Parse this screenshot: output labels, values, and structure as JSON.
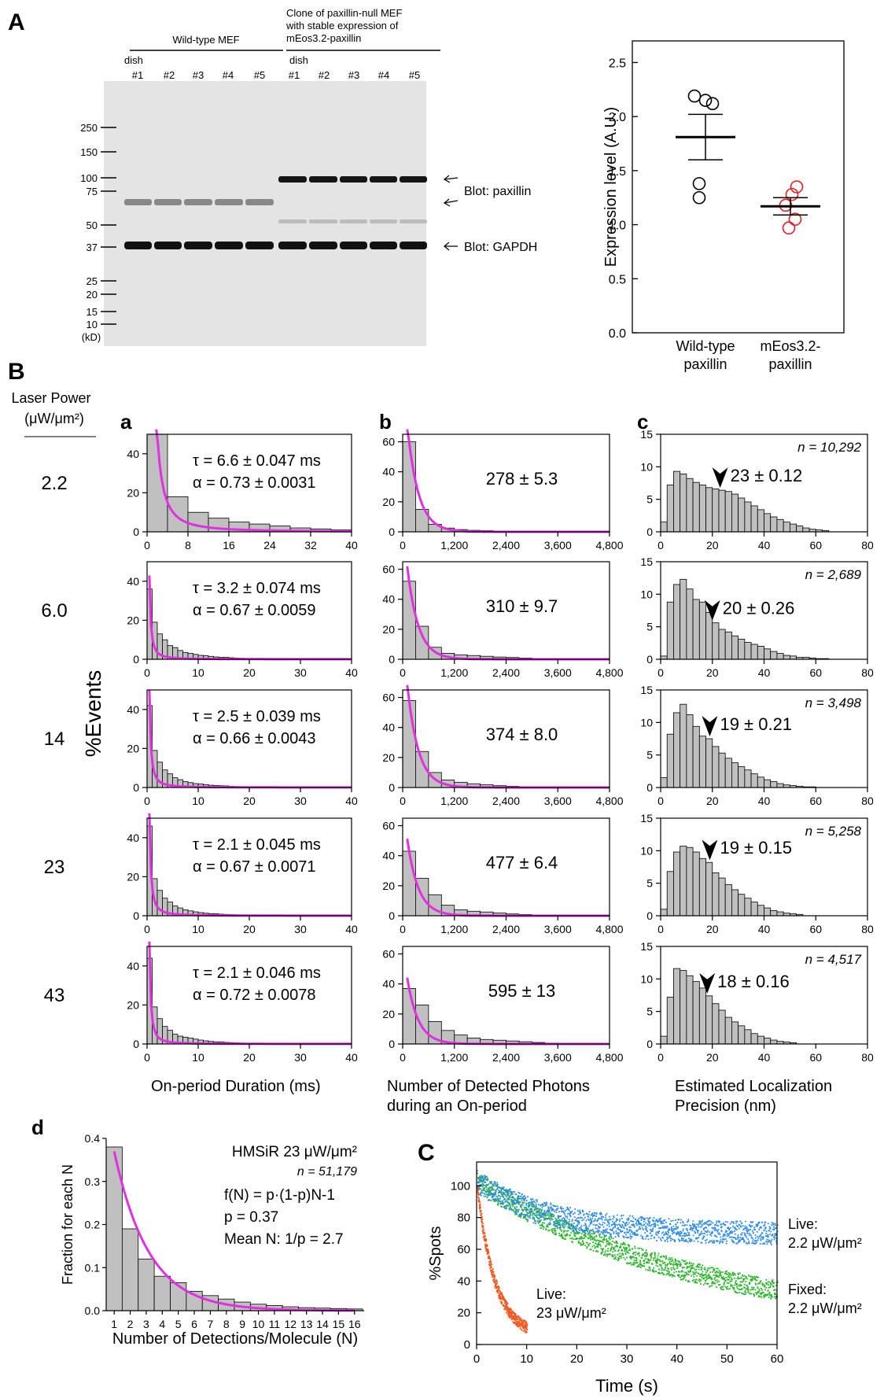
{
  "colors": {
    "fit": "#e030e0",
    "bar": "#c0c0c0",
    "wt": "#000000",
    "eos": "#e02020",
    "live22": "#2a8ae8",
    "fixed": "#2ab52a",
    "live23": "#f05a20"
  },
  "panelA": {
    "label": "A",
    "wt_header": "Wild-type MEF",
    "eos_header": [
      "Clone of paxillin-null MEF",
      "with stable expression of",
      "mEos3.2-paxillin"
    ],
    "dish_label": "dish",
    "dishes": [
      "#1",
      "#2",
      "#3",
      "#4",
      "#5"
    ],
    "markers": [
      "250",
      "150",
      "100",
      "75",
      "50",
      "37",
      "25",
      "20",
      "15",
      "10",
      "(kD)"
    ],
    "blot_paxillin": "Blot: paxillin",
    "blot_gapdh": "Blot: GAPDH",
    "scatter": {
      "ylabel": "Expression level (A.U.)",
      "ylim": [
        0,
        2.7
      ],
      "yticks": [
        "0.0",
        "0.5",
        "1.0",
        "1.5",
        "2.0",
        "2.5"
      ],
      "groups": [
        {
          "label": [
            "Wild-type",
            "paxillin"
          ],
          "points": [
            2.19,
            2.15,
            2.12,
            1.38,
            1.25
          ],
          "mean": 1.81,
          "sem": 0.21
        },
        {
          "label": [
            "mEos3.2-",
            "paxillin"
          ],
          "points": [
            1.35,
            1.28,
            1.18,
            1.05,
            0.97
          ],
          "mean": 1.17,
          "sem": 0.08
        }
      ]
    }
  },
  "panelB": {
    "label": "B",
    "laser_label": [
      "Laser Power",
      "(μW/μm²)"
    ],
    "powers": [
      "2.2",
      "6.0",
      "14",
      "23",
      "43"
    ],
    "yaxis_label": "%Events",
    "col_labels": [
      "a",
      "b",
      "c"
    ],
    "xlabels": [
      [
        "On-period Duration (ms)"
      ],
      [
        "Number of Detected Photons",
        "during an On-period"
      ],
      [
        "Estimated Localization",
        "Precision (nm)"
      ]
    ],
    "xticks": [
      [
        [
          "0",
          "8",
          "16",
          "24",
          "32",
          "40"
        ],
        [
          "0",
          "10",
          "20",
          "30",
          "40"
        ],
        [
          "0",
          "10",
          "20",
          "30",
          "40"
        ],
        [
          "0",
          "10",
          "20",
          "30",
          "40"
        ],
        [
          "0",
          "10",
          "20",
          "30",
          "40"
        ]
      ],
      [
        "0",
        "1,200",
        "2,400",
        "3,600",
        "4,800"
      ],
      [
        "0",
        "20",
        "40",
        "60",
        "80"
      ]
    ],
    "yticks": [
      [
        "0",
        "20",
        "40"
      ],
      [
        "0",
        "20",
        "40",
        "60"
      ],
      [
        "0",
        "5",
        "10",
        "15"
      ]
    ],
    "ylim": [
      50,
      65,
      15
    ],
    "tau": [
      "τ = 6.6 ± 0.047 ms",
      "τ = 3.2 ± 0.074 ms",
      "τ = 2.5 ± 0.039 ms",
      "τ = 2.1 ± 0.045 ms",
      "τ = 2.1 ± 0.046 ms"
    ],
    "alpha": [
      "α = 0.73 ± 0.0031",
      "α = 0.67 ± 0.0059",
      "α = 0.66 ± 0.0043",
      "α = 0.67 ± 0.0071",
      "α = 0.72 ± 0.0078"
    ],
    "photons": [
      "278 ± 5.3",
      "310 ± 9.7",
      "374 ± 8.0",
      "477 ± 6.4",
      "595 ± 13"
    ],
    "precision": [
      "23 ± 0.12",
      "20 ± 0.26",
      "19 ± 0.21",
      "19 ± 0.15",
      "18 ± 0.16"
    ],
    "precision_peak": [
      23,
      20,
      19,
      19,
      18
    ],
    "ns": [
      "n = 10,292",
      "n = 2,689",
      "n = 3,498",
      "n = 5,258",
      "n = 4,517"
    ],
    "duration_bins": [
      {
        "width": 4,
        "values": [
          50,
          18,
          10,
          7,
          5,
          4,
          3,
          2,
          1.5,
          1
        ]
      },
      {
        "width": 1,
        "values": [
          36,
          19,
          13,
          10,
          7,
          6,
          4.5,
          3.5,
          3,
          2.5,
          2,
          1.8,
          1.5,
          1.2,
          1,
          1,
          0.8,
          0.6,
          0.5,
          0.4,
          0.3,
          0.3,
          0.2,
          0.2,
          0.2
        ]
      },
      {
        "width": 1,
        "values": [
          42,
          19,
          13,
          9,
          7,
          5,
          4,
          3,
          2.5,
          2,
          1.8,
          1.5,
          1.2,
          1,
          0.9,
          0.8,
          0.6,
          0.5,
          0.4,
          0.3,
          0.3,
          0.2,
          0.2,
          0.2,
          0.2
        ]
      },
      {
        "width": 1,
        "values": [
          46,
          19,
          13,
          9,
          7,
          5,
          4,
          3,
          2.5,
          2,
          1.6,
          1.3,
          1.1,
          1,
          0.8,
          0.7,
          0.6,
          0.5,
          0.4,
          0.3,
          0.3,
          0.2,
          0.2,
          0.2,
          0.2
        ]
      },
      {
        "width": 1,
        "values": [
          44,
          19,
          13,
          9,
          7,
          5,
          4,
          3.5,
          3,
          2.5,
          2,
          1.6,
          1.3,
          1.1,
          1,
          0.8,
          0.7,
          0.6,
          0.5,
          0.4,
          0.3,
          0.3,
          0.2,
          0.2,
          0.2
        ]
      }
    ],
    "photon_bins": [
      {
        "width": 300,
        "values": [
          60,
          15,
          5,
          2.5,
          1.5,
          1,
          0.8,
          0.5,
          0.3,
          0.3
        ]
      },
      {
        "width": 300,
        "values": [
          52,
          22,
          8,
          4,
          3,
          2.5,
          2,
          1.5,
          1.2,
          0.8,
          0.5
        ]
      },
      {
        "width": 300,
        "values": [
          58,
          24,
          10,
          5,
          3.5,
          2.5,
          1.8,
          1.2,
          0.8,
          0.5
        ]
      },
      {
        "width": 300,
        "values": [
          43,
          25,
          14,
          7,
          4,
          3,
          2.5,
          1.8,
          1.2,
          0.8,
          0.5
        ]
      },
      {
        "width": 300,
        "values": [
          37,
          26,
          15,
          9,
          6,
          4,
          3,
          2.5,
          2,
          1.5,
          1,
          0.6
        ]
      }
    ],
    "precision_bins": [
      {
        "width": 2.5,
        "values": [
          1.5,
          7.2,
          9.3,
          8.9,
          8.2,
          7.6,
          7.2,
          6.8,
          6.6,
          6.4,
          6.2,
          5.8,
          5.2,
          4.6,
          4.0,
          3.4,
          2.8,
          2.3,
          1.9,
          1.5,
          1.2,
          0.9,
          0.6,
          0.4,
          0.3,
          0.2
        ]
      },
      {
        "width": 2.5,
        "values": [
          0.5,
          8.8,
          11.5,
          12.3,
          10.8,
          9.2,
          8.8,
          7.2,
          5.6,
          4.6,
          4.2,
          3.6,
          3.1,
          2.6,
          2.3,
          2.0,
          1.6,
          1.2,
          0.9,
          0.6,
          0.5,
          0.3,
          0.3,
          0.2,
          0.1,
          0.1
        ]
      },
      {
        "width": 2.5,
        "values": [
          1.5,
          8.2,
          11.5,
          12.8,
          11.2,
          9.4,
          7.9,
          7.5,
          6.3,
          5.3,
          4.5,
          3.8,
          3.2,
          2.7,
          2.1,
          1.6,
          1.2,
          0.9,
          0.6,
          0.4,
          0.3,
          0.2,
          0.1,
          0.1
        ]
      },
      {
        "width": 2.5,
        "values": [
          1.0,
          6.8,
          9.8,
          10.7,
          10.5,
          9.8,
          8.8,
          8.2,
          6.6,
          5.8,
          4.8,
          4.0,
          3.3,
          2.7,
          2.1,
          1.6,
          1.2,
          0.8,
          0.6,
          0.4,
          0.3,
          0.2
        ]
      },
      {
        "width": 2.5,
        "values": [
          1.2,
          7.2,
          11.6,
          11.3,
          10.5,
          9.6,
          8.6,
          7.4,
          6.2,
          5.2,
          4.1,
          3.4,
          2.8,
          2.2,
          1.6,
          1.2,
          0.9,
          0.6,
          0.4,
          0.3,
          0.2
        ]
      }
    ]
  },
  "panelD": {
    "label": "d",
    "title": "HMSiR 23 μW/μm²",
    "n": "n = 51,179",
    "formula": "f(N) = p·(1-p)N-1",
    "p": "p = 0.37",
    "mean": "Mean N: 1/p = 2.7",
    "ylabel": "Fraction for each N",
    "xlabel": "Number of Detections/Molecule (N)",
    "yticks": [
      "0.0",
      "0.1",
      "0.2",
      "0.3",
      "0.4"
    ],
    "xticks": [
      "1",
      "2",
      "3",
      "4",
      "5",
      "6",
      "7",
      "8",
      "9",
      "10",
      "11",
      "12",
      "13",
      "14",
      "15",
      "16"
    ],
    "values": [
      0.38,
      0.19,
      0.12,
      0.08,
      0.065,
      0.045,
      0.035,
      0.027,
      0.02,
      0.015,
      0.012,
      0.009,
      0.007,
      0.006,
      0.005,
      0.004
    ],
    "p_value": 0.37
  },
  "panelC": {
    "label": "C",
    "ylabel": "%Spots",
    "xlabel": "Time (s)",
    "xticks": [
      "0",
      "10",
      "20",
      "30",
      "40",
      "50",
      "60"
    ],
    "yticks": [
      "0",
      "20",
      "40",
      "60",
      "80",
      "100"
    ],
    "xlim": [
      0,
      60
    ],
    "ylim": [
      0,
      115
    ],
    "series": [
      {
        "label": [
          "Live:",
          "2.2 μW/μm²"
        ],
        "start": 103,
        "plateau": 70,
        "tau": 15,
        "end": 60,
        "noise": 9
      },
      {
        "label": [
          "Fixed:",
          "2.2 μW/μm²"
        ],
        "start": 103,
        "plateau": 10,
        "tau": 45,
        "end": 60,
        "noise": 8
      },
      {
        "label": [
          "Live:",
          "23 μW/μm²"
        ],
        "start": 100,
        "plateau": 5,
        "tau": 3.6,
        "end": 10,
        "noise": 6
      }
    ]
  }
}
